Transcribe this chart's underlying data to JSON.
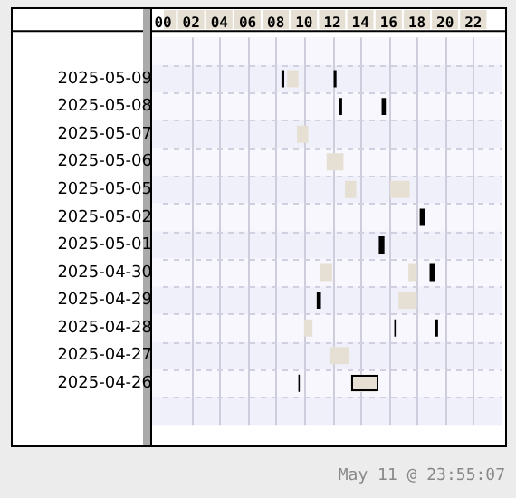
{
  "chart_data": {
    "type": "bar",
    "orientation": "horizontal",
    "categories": [
      null,
      "2025-05-09",
      "2025-05-08",
      "2025-05-07",
      "2025-05-06",
      "2025-05-05",
      "2025-05-02",
      "2025-05-01",
      "2025-04-30",
      "2025-04-29",
      "2025-04-28",
      "2025-04-27",
      "2025-04-26",
      null
    ],
    "series": [
      {
        "colors": [
          null,
          "#000000",
          "#000000",
          "#e6e0d4",
          "#e6e0d4",
          "#e6e0d4",
          "#000000",
          "#000000",
          "#e6e0d4",
          "#000000",
          "#e6e0d4",
          "#e6e0d4",
          "#000000",
          null
        ],
        "base": [
          null,
          8.4,
          12.5,
          9.5,
          11.6,
          12.9,
          18.2,
          15.3,
          11.1,
          10.9,
          10.0,
          11.8,
          9.6,
          null
        ],
        "values": [
          null,
          0.2,
          0.2,
          0.8,
          1.2,
          0.8,
          0.4,
          0.4,
          0.9,
          0.3,
          0.6,
          1.4,
          0.1,
          null
        ]
      },
      {
        "colors": [
          null,
          "#e6e0d4",
          "#000000",
          null,
          null,
          "#e6e0d4",
          null,
          null,
          "#e6e0d4",
          "#e6e0d4",
          "#000000",
          null,
          "#e6e0d4",
          null
        ],
        "base": [
          null,
          8.8,
          15.5,
          null,
          null,
          16.1,
          null,
          null,
          17.4,
          16.7,
          16.4,
          null,
          13.3,
          null
        ],
        "values": [
          null,
          0.8,
          0.3,
          null,
          null,
          1.4,
          null,
          null,
          0.6,
          1.3,
          0.1,
          null,
          1.9,
          null
        ]
      },
      {
        "colors": [
          null,
          "#000000",
          null,
          null,
          null,
          null,
          null,
          null,
          "#000000",
          null,
          "#000000",
          null,
          null,
          null
        ],
        "base": [
          null,
          12.1,
          null,
          null,
          null,
          null,
          null,
          null,
          18.9,
          null,
          19.3,
          null,
          null,
          null
        ],
        "values": [
          null,
          0.2,
          null,
          null,
          null,
          null,
          null,
          null,
          0.4,
          null,
          0.2,
          null,
          null,
          null
        ]
      }
    ],
    "xlim": [
      0,
      24
    ],
    "xticks": [
      {
        "value": 0,
        "label": "00"
      },
      {
        "value": 2,
        "label": "02"
      },
      {
        "value": 4,
        "label": "04"
      },
      {
        "value": 6,
        "label": "06"
      },
      {
        "value": 8,
        "label": "08"
      },
      {
        "value": 10,
        "label": "10"
      },
      {
        "value": 12,
        "label": "12"
      },
      {
        "value": 14,
        "label": "14"
      },
      {
        "value": 16,
        "label": "16"
      },
      {
        "value": 18,
        "label": "18"
      },
      {
        "value": 20,
        "label": "20"
      },
      {
        "value": 22,
        "label": "22"
      }
    ],
    "grid": true,
    "annotations": [
      "May 11 @ 23:55:07"
    ]
  }
}
